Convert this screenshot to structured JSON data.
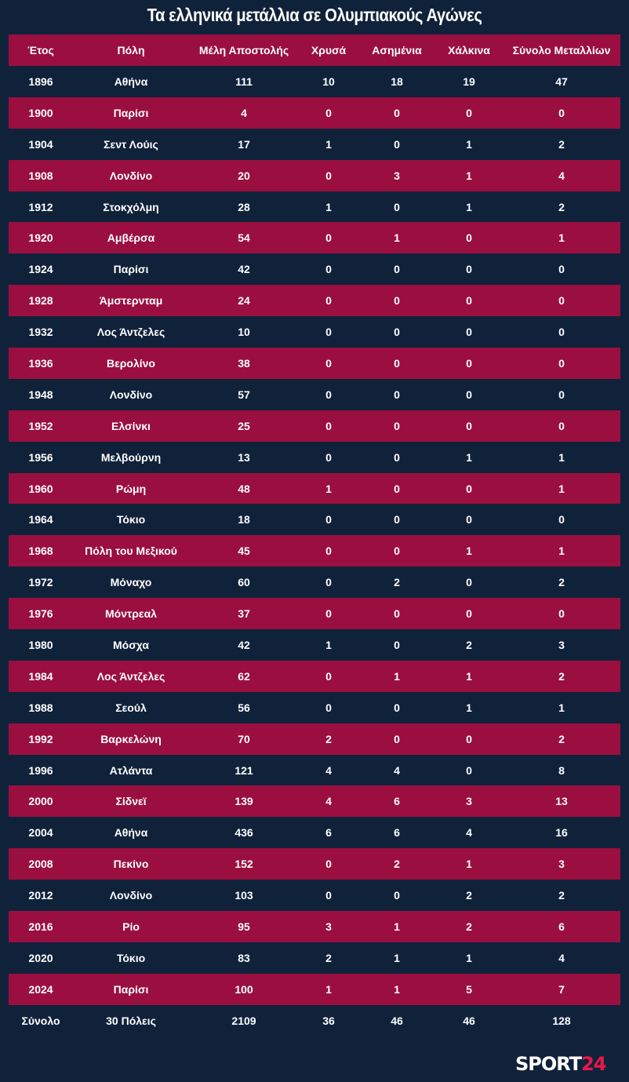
{
  "title": "Τα ελληνικά μετάλλια σε Ολυμπιακούς Αγώνες",
  "colors": {
    "background": "#10223a",
    "accent": "#9a0f3f",
    "logo_accent": "#e8174b"
  },
  "logo": {
    "part1": "SPORT",
    "part2": "24"
  },
  "chart_data": {
    "type": "table",
    "title": "Τα ελληνικά μετάλλια σε Ολυμπιακούς Αγώνες",
    "columns": [
      "Έτος",
      "Πόλη",
      "Μέλη Αποστολής",
      "Χρυσά",
      "Ασημένια",
      "Χάλκινα",
      "Σύνολο Μεταλλίων"
    ],
    "rows": [
      [
        "1896",
        "Αθήνα",
        "111",
        "10",
        "18",
        "19",
        "47"
      ],
      [
        "1900",
        "Παρίσι",
        "4",
        "0",
        "0",
        "0",
        "0"
      ],
      [
        "1904",
        "Σεντ Λούις",
        "17",
        "1",
        "0",
        "1",
        "2"
      ],
      [
        "1908",
        "Λονδίνο",
        "20",
        "0",
        "3",
        "1",
        "4"
      ],
      [
        "1912",
        "Στοκχόλμη",
        "28",
        "1",
        "0",
        "1",
        "2"
      ],
      [
        "1920",
        "Αμβέρσα",
        "54",
        "0",
        "1",
        "0",
        "1"
      ],
      [
        "1924",
        "Παρίσι",
        "42",
        "0",
        "0",
        "0",
        "0"
      ],
      [
        "1928",
        "Άμστερνταμ",
        "24",
        "0",
        "0",
        "0",
        "0"
      ],
      [
        "1932",
        "Λος Άντζελες",
        "10",
        "0",
        "0",
        "0",
        "0"
      ],
      [
        "1936",
        "Βερολίνο",
        "38",
        "0",
        "0",
        "0",
        "0"
      ],
      [
        "1948",
        "Λονδίνο",
        "57",
        "0",
        "0",
        "0",
        "0"
      ],
      [
        "1952",
        "Ελσίνκι",
        "25",
        "0",
        "0",
        "0",
        "0"
      ],
      [
        "1956",
        "Μελβούρνη",
        "13",
        "0",
        "0",
        "1",
        "1"
      ],
      [
        "1960",
        "Ρώμη",
        "48",
        "1",
        "0",
        "0",
        "1"
      ],
      [
        "1964",
        "Τόκιο",
        "18",
        "0",
        "0",
        "0",
        "0"
      ],
      [
        "1968",
        "Πόλη του Μεξικού",
        "45",
        "0",
        "0",
        "1",
        "1"
      ],
      [
        "1972",
        "Μόναχο",
        "60",
        "0",
        "2",
        "0",
        "2"
      ],
      [
        "1976",
        "Μόντρεαλ",
        "37",
        "0",
        "0",
        "0",
        "0"
      ],
      [
        "1980",
        "Μόσχα",
        "42",
        "1",
        "0",
        "2",
        "3"
      ],
      [
        "1984",
        "Λος Άντζελες",
        "62",
        "0",
        "1",
        "1",
        "2"
      ],
      [
        "1988",
        "Σεούλ",
        "56",
        "0",
        "0",
        "1",
        "1"
      ],
      [
        "1992",
        "Βαρκελώνη",
        "70",
        "2",
        "0",
        "0",
        "2"
      ],
      [
        "1996",
        "Ατλάντα",
        "121",
        "4",
        "4",
        "0",
        "8"
      ],
      [
        "2000",
        "Σίδνεϊ",
        "139",
        "4",
        "6",
        "3",
        "13"
      ],
      [
        "2004",
        "Αθήνα",
        "436",
        "6",
        "6",
        "4",
        "16"
      ],
      [
        "2008",
        "Πεκίνο",
        "152",
        "0",
        "2",
        "1",
        "3"
      ],
      [
        "2012",
        "Λονδίνο",
        "103",
        "0",
        "0",
        "2",
        "2"
      ],
      [
        "2016",
        "Ρίο",
        "95",
        "3",
        "1",
        "2",
        "6"
      ],
      [
        "2020",
        "Τόκιο",
        "83",
        "2",
        "1",
        "1",
        "4"
      ],
      [
        "2024",
        "Παρίσι",
        "100",
        "1",
        "1",
        "5",
        "7"
      ]
    ],
    "total": [
      "Σύνολο",
      "30 Πόλεις",
      "2109",
      "36",
      "46",
      "46",
      "128"
    ]
  }
}
